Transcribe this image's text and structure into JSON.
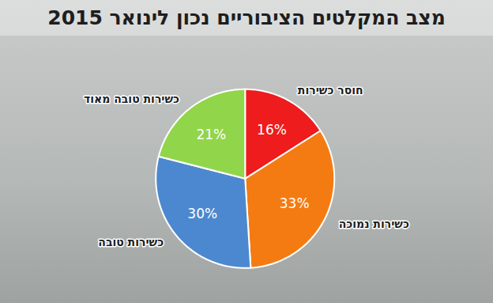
{
  "chart_data": {
    "type": "pie",
    "title": "מצב המקלטים הציבוריים נכון לינואר 2015",
    "categories": [
      "חוסר כשירות",
      "כשירות נמוכה",
      "כשירות טובה",
      "כשירות טובה מאוד"
    ],
    "values": [
      16,
      33,
      30,
      21
    ],
    "value_labels": [
      "16%",
      "33%",
      "30%",
      "21%"
    ],
    "colors": [
      "#ee1c1c",
      "#f47b12",
      "#4c88cf",
      "#91d54a"
    ],
    "data_labels": true
  }
}
